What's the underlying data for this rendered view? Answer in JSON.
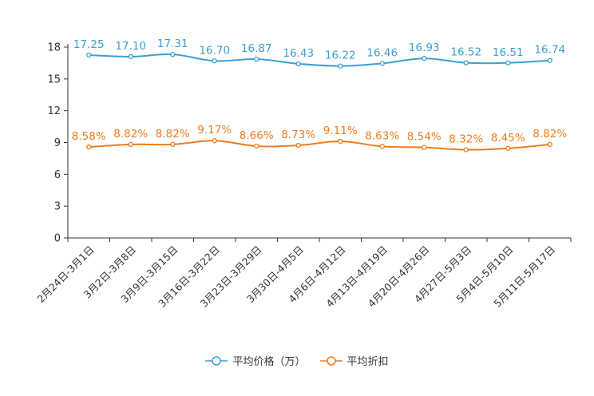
{
  "chart_data": {
    "type": "line",
    "categories": [
      "2月24日-3月1日",
      "3月2日-3月8日",
      "3月9日-3月15日",
      "3月16日-3月22日",
      "3月23日-3月29日",
      "3月30日-4月5日",
      "4月6日-4月12日",
      "4月13日-4月19日",
      "4月20日-4月26日",
      "4月27日-5月3日",
      "5月4日-5月10日",
      "5月11日-5月17日"
    ],
    "series": [
      {
        "name": "平均价格（万）",
        "color": "#3c9fd0",
        "values": [
          17.25,
          17.1,
          17.31,
          16.7,
          16.87,
          16.43,
          16.22,
          16.46,
          16.93,
          16.52,
          16.51,
          16.74
        ],
        "labels": [
          "17.25",
          "17.10",
          "17.31",
          "16.70",
          "16.87",
          "16.43",
          "16.22",
          "16.46",
          "16.93",
          "16.52",
          "16.51",
          "16.74"
        ]
      },
      {
        "name": "平均折扣",
        "color": "#f07c1c",
        "values": [
          8.58,
          8.82,
          8.82,
          9.17,
          8.66,
          8.73,
          9.11,
          8.63,
          8.54,
          8.32,
          8.45,
          8.82
        ],
        "labels": [
          "8.58%",
          "8.82%",
          "8.82%",
          "9.17%",
          "8.66%",
          "8.73%",
          "9.11%",
          "8.63%",
          "8.54%",
          "8.32%",
          "8.45%",
          "8.82%"
        ]
      }
    ],
    "yticks": [
      "0",
      "3",
      "6",
      "9",
      "12",
      "15",
      "18"
    ],
    "ylim": [
      0,
      18
    ],
    "title": "",
    "xlabel": "",
    "ylabel": "",
    "legend_position": "bottom-center"
  }
}
